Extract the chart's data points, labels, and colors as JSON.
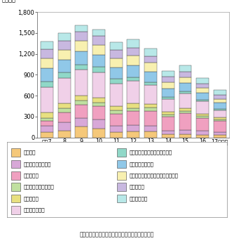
{
  "years": [
    "平成7",
    "8",
    "9",
    "10",
    "11",
    "12",
    "13",
    "14",
    "15",
    "16",
    "17（年）"
  ],
  "categories": [
    "パソコン",
    "電子計算機付属装置",
    "携帯電話機",
    "ラジオ・テレビ受信機",
    "事務用機器",
    "その他の機器等",
    "電子計算機本体（除パソコン）",
    "有線電気通信機器",
    "無線電気通信機器（除携帯電話機）",
    "ビデオ機器",
    "電気音響機器"
  ],
  "colors": [
    "#F5C87A",
    "#D8A8D8",
    "#F0A0C0",
    "#C0E0A0",
    "#E8E080",
    "#F0D0E8",
    "#90D8C8",
    "#90C8E8",
    "#F8F0B0",
    "#C8B8E0",
    "#B8E8E8"
  ],
  "stack_data": [
    [
      75,
      100,
      155,
      130,
      75,
      85,
      85,
      45,
      45,
      40,
      35
    ],
    [
      90,
      120,
      125,
      125,
      95,
      95,
      80,
      55,
      65,
      55,
      45
    ],
    [
      70,
      140,
      190,
      190,
      170,
      195,
      215,
      195,
      235,
      185,
      155
    ],
    [
      45,
      55,
      55,
      50,
      45,
      45,
      45,
      35,
      35,
      30,
      25
    ],
    [
      75,
      75,
      75,
      75,
      65,
      65,
      55,
      38,
      38,
      32,
      28
    ],
    [
      370,
      365,
      375,
      365,
      325,
      325,
      275,
      180,
      215,
      180,
      105
    ],
    [
      75,
      75,
      65,
      75,
      65,
      55,
      38,
      28,
      28,
      18,
      12
    ],
    [
      195,
      185,
      195,
      175,
      165,
      165,
      155,
      125,
      125,
      105,
      95
    ],
    [
      145,
      145,
      155,
      145,
      135,
      145,
      125,
      95,
      75,
      65,
      55
    ],
    [
      125,
      125,
      125,
      125,
      115,
      115,
      95,
      75,
      85,
      65,
      55
    ],
    [
      115,
      115,
      95,
      95,
      115,
      115,
      105,
      85,
      85,
      75,
      75
    ]
  ],
  "ylim": [
    0,
    1800
  ],
  "yticks": [
    0,
    300,
    600,
    900,
    1200,
    1500,
    1800
  ],
  "ylabel": "（千人）",
  "source": "（出典）「情報通信による経済成長に関する調査」",
  "bg_color": "#ffffff"
}
